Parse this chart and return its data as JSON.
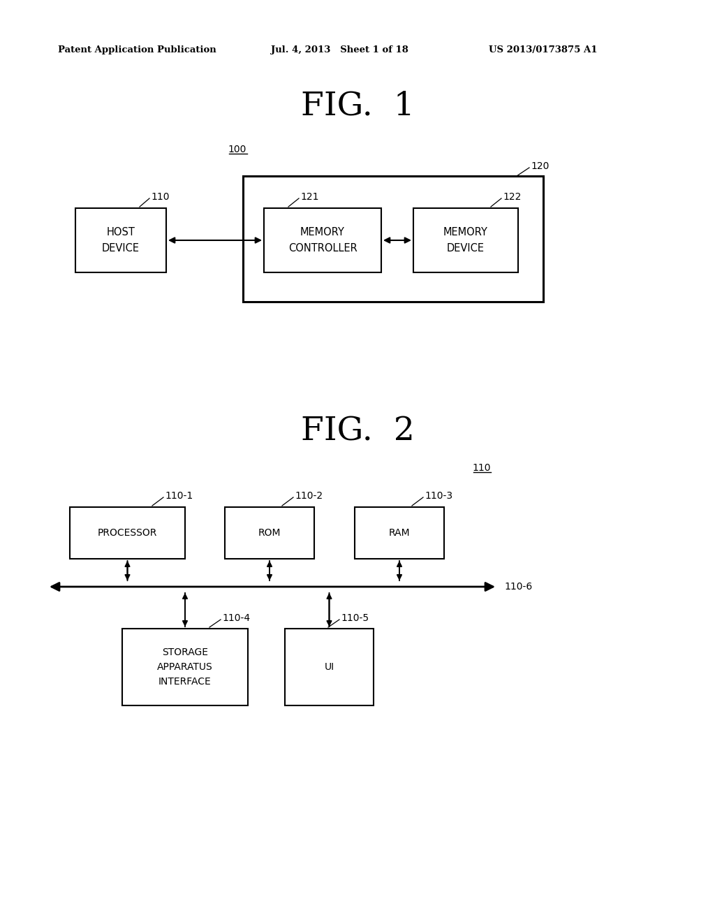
{
  "bg_color": "#ffffff",
  "header_left": "Patent Application Publication",
  "header_mid": "Jul. 4, 2013   Sheet 1 of 18",
  "header_right": "US 2013/0173875 A1",
  "fig1_title": "FIG.  1",
  "fig2_title": "FIG.  2",
  "fig1_label_100": "100",
  "fig1_label_110": "110",
  "fig1_label_120": "120",
  "fig1_label_121": "121",
  "fig1_label_122": "122",
  "fig1_box_host_text": "HOST\nDEVICE",
  "fig1_box_mc_text": "MEMORY\nCONTROLLER",
  "fig1_box_md_text": "MEMORY\nDEVICE",
  "fig2_label_110": "110",
  "fig2_label_110_1": "110-1",
  "fig2_label_110_2": "110-2",
  "fig2_label_110_3": "110-3",
  "fig2_label_110_4": "110-4",
  "fig2_label_110_5": "110-5",
  "fig2_label_110_6": "110-6",
  "fig2_box_proc_text": "PROCESSOR",
  "fig2_box_rom_text": "ROM",
  "fig2_box_ram_text": "RAM",
  "fig2_box_sai_text": "STORAGE\nAPPARATUS\nINTERFACE",
  "fig2_box_ui_text": "UI",
  "line_color": "#000000",
  "text_color": "#000000"
}
